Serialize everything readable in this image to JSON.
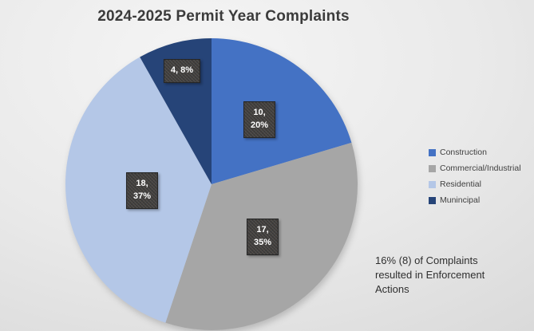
{
  "title": "2024-2025 Permit Year Complaints",
  "chart_data": {
    "type": "pie",
    "title": "2024-2025 Permit Year Complaints",
    "categories": [
      "Construction",
      "Commercial/Industrial",
      "Residential",
      "Munincipal"
    ],
    "values": [
      10,
      17,
      18,
      4
    ],
    "percent_labels": [
      "20%",
      "35%",
      "37%",
      "8%"
    ],
    "slice_label_lines": [
      [
        "10,",
        "20%"
      ],
      [
        "17,",
        "35%"
      ],
      [
        "18,",
        "37%"
      ],
      [
        "4, 8%"
      ]
    ],
    "colors": [
      "#4472c4",
      "#a6a6a6",
      "#b4c7e7",
      "#264478"
    ],
    "start_angle_deg": 0,
    "direction": "clockwise",
    "legend_position": "right",
    "label_style": {
      "box_color": "#3a3a3a",
      "text_color": "#ffffff"
    }
  },
  "legend": {
    "items": [
      {
        "label": "Construction",
        "color": "#4472c4"
      },
      {
        "label": "Commercial/Industrial",
        "color": "#a6a6a6"
      },
      {
        "label": "Residential",
        "color": "#b4c7e7"
      },
      {
        "label": "Munincipal",
        "color": "#264478"
      }
    ]
  },
  "annotation": {
    "text": "16% (8) of Complaints resulted in Enforcement Actions"
  }
}
